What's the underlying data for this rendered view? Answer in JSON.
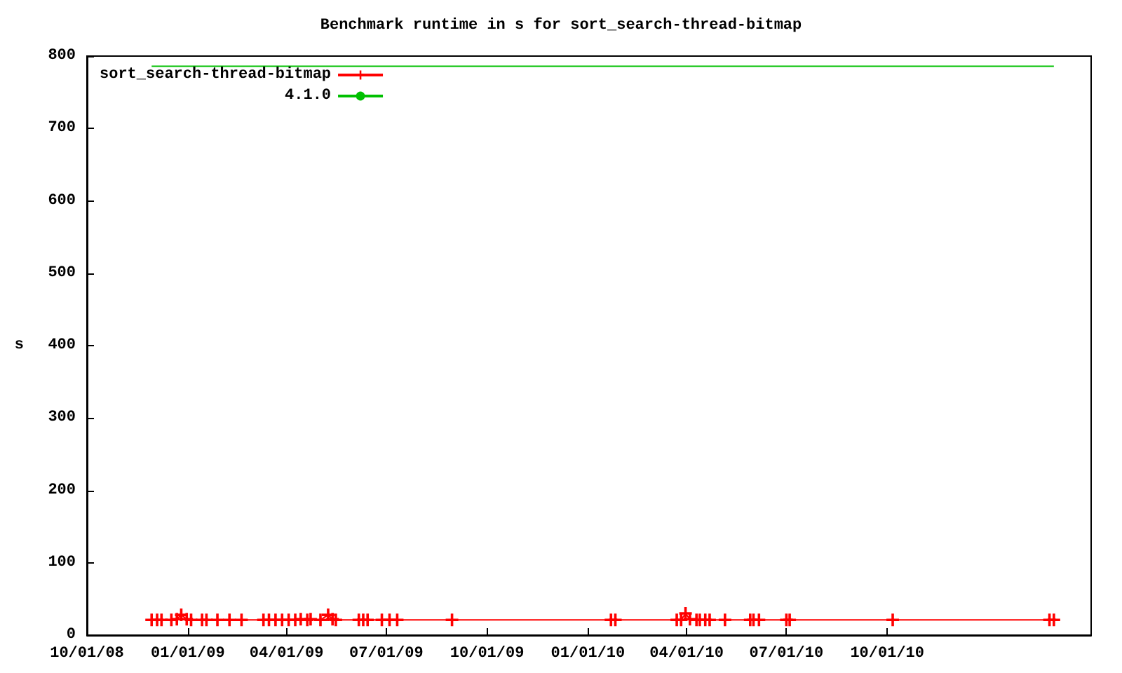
{
  "chart_data": {
    "type": "line",
    "title": "Benchmark runtime in s for sort_search-thread-bitmap",
    "ylabel": "s",
    "xlim": [
      "2008-10-01",
      "2011-04-05"
    ],
    "xticks": [
      {
        "value": "2008-10-01",
        "label": "10/01/08"
      },
      {
        "value": "2009-01-01",
        "label": "01/01/09"
      },
      {
        "value": "2009-04-01",
        "label": "04/01/09"
      },
      {
        "value": "2009-07-01",
        "label": "07/01/09"
      },
      {
        "value": "2009-10-01",
        "label": "10/01/09"
      },
      {
        "value": "2010-01-01",
        "label": "01/01/10"
      },
      {
        "value": "2010-04-01",
        "label": "04/01/10"
      },
      {
        "value": "2010-07-01",
        "label": "07/01/10"
      },
      {
        "value": "2010-10-01",
        "label": "10/01/10"
      }
    ],
    "ylim": [
      0,
      800
    ],
    "yticks": [
      0,
      100,
      200,
      300,
      400,
      500,
      600,
      700,
      800
    ],
    "grid": false,
    "legend": "top left",
    "marker": "cross",
    "series": [
      {
        "name": "sort_search-thread-bitmap",
        "color": "#ff0000",
        "x": [
          "2008-11-29",
          "2008-12-04",
          "2008-12-08",
          "2008-12-17",
          "2008-12-22",
          "2008-12-26",
          "2008-12-31",
          "2009-01-04",
          "2009-01-14",
          "2009-01-18",
          "2009-01-28",
          "2009-02-08",
          "2009-02-19",
          "2009-03-11",
          "2009-03-16",
          "2009-03-22",
          "2009-03-28",
          "2009-04-03",
          "2009-04-09",
          "2009-04-14",
          "2009-04-20",
          "2009-04-23",
          "2009-05-02",
          "2009-05-09",
          "2009-05-13",
          "2009-05-16",
          "2009-06-06",
          "2009-06-10",
          "2009-06-14",
          "2009-06-27",
          "2009-07-04",
          "2009-07-11",
          "2009-08-30",
          "2010-01-22",
          "2010-01-26",
          "2010-03-23",
          "2010-03-27",
          "2010-03-31",
          "2010-04-04",
          "2010-04-10",
          "2010-04-13",
          "2010-04-18",
          "2010-04-22",
          "2010-05-06",
          "2010-05-29",
          "2010-06-01",
          "2010-06-06",
          "2010-07-01",
          "2010-07-04",
          "2010-10-06",
          "2011-02-26",
          "2011-03-02"
        ],
        "values": [
          21,
          21,
          21,
          21,
          22,
          28,
          22,
          21,
          21,
          21,
          21,
          21,
          21,
          21,
          21,
          21,
          21,
          21,
          21,
          22,
          21,
          22,
          21,
          28,
          22,
          21,
          21,
          21,
          21,
          21,
          21,
          21,
          21,
          21,
          21,
          21,
          21,
          30,
          22,
          21,
          21,
          21,
          21,
          21,
          21,
          21,
          21,
          21,
          21,
          21,
          21,
          21
        ]
      },
      {
        "name": "4.1.0",
        "color": "#00c000",
        "marker": "none",
        "x": [
          "2008-11-29",
          "2011-03-02"
        ],
        "values": [
          786,
          786
        ]
      }
    ]
  }
}
